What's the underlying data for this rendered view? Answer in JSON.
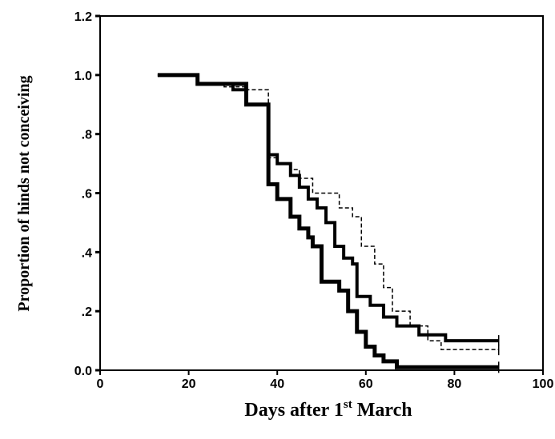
{
  "chart_data": {
    "type": "step",
    "ylabel": "Proportion of hinds not conceiving",
    "xlabel": {
      "main": "Days after 1",
      "sup": "st",
      "rest": "March"
    },
    "xlim": [
      0,
      100
    ],
    "xticks": [
      0,
      20,
      40,
      60,
      80,
      100
    ],
    "ylim": [
      0,
      1.2
    ],
    "yticks": [
      {
        "value": 0,
        "label": "0.0"
      },
      {
        "value": 0.2,
        "label": ".2"
      },
      {
        "value": 0.4,
        "label": ".4"
      },
      {
        "value": 0.6,
        "label": ".6"
      },
      {
        "value": 0.8,
        "label": ".8"
      },
      {
        "value": 1,
        "label": "1.0"
      },
      1.2
    ],
    "series": [
      {
        "color": "#000000",
        "line_style": "solid",
        "x": [
          13,
          22,
          33,
          38,
          40,
          43,
          45,
          47,
          48,
          50,
          54,
          56,
          58,
          60,
          62,
          64,
          67,
          90
        ],
        "values": [
          1.0,
          0.97,
          0.9,
          0.63,
          0.58,
          0.52,
          0.48,
          0.45,
          0.42,
          0.3,
          0.27,
          0.2,
          0.13,
          0.08,
          0.05,
          0.03,
          0.01,
          0.01
        ]
      },
      {
        "color": "#000000",
        "line_style": "solid",
        "x": [
          13,
          22,
          30,
          33,
          38,
          40,
          43,
          45,
          47,
          49,
          51,
          53,
          55,
          57,
          58,
          61,
          64,
          67,
          72,
          78,
          90
        ],
        "values": [
          1.0,
          0.97,
          0.95,
          0.9,
          0.73,
          0.7,
          0.66,
          0.62,
          0.58,
          0.55,
          0.5,
          0.42,
          0.38,
          0.36,
          0.25,
          0.22,
          0.18,
          0.15,
          0.12,
          0.1,
          0.1
        ]
      },
      {
        "color": "#000000",
        "line_style": "dashed",
        "x": [
          13,
          22,
          28,
          33,
          38,
          40,
          43,
          45,
          48,
          52,
          54,
          57,
          59,
          62,
          64,
          66,
          70,
          74,
          77,
          90
        ],
        "values": [
          1.0,
          0.97,
          0.96,
          0.95,
          0.72,
          0.7,
          0.68,
          0.65,
          0.6,
          0.6,
          0.55,
          0.52,
          0.42,
          0.36,
          0.28,
          0.2,
          0.15,
          0.1,
          0.07,
          0.07
        ]
      }
    ]
  }
}
